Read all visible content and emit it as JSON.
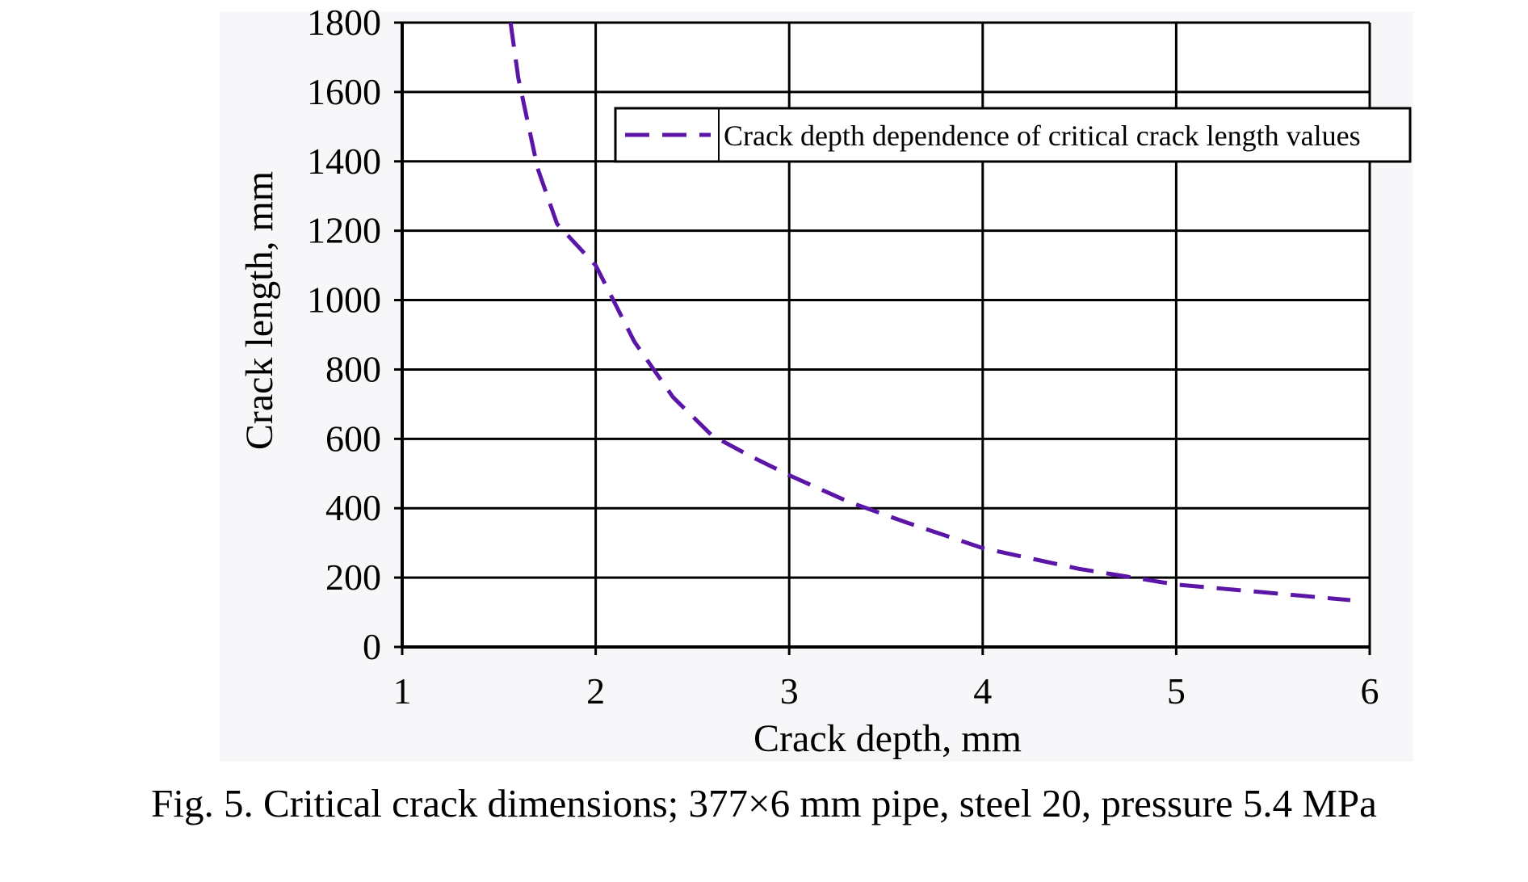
{
  "caption": "Fig. 5. Critical crack dimensions; 377×6 mm pipe, steel 20, pressure 5.4 MPa",
  "chart_data": {
    "type": "line",
    "title": "",
    "xlabel": "Crack depth, mm",
    "ylabel": "Crack length, mm",
    "xlim": [
      1,
      6
    ],
    "ylim": [
      0,
      1800
    ],
    "xticks": [
      "1",
      "2",
      "3",
      "4",
      "5",
      "6"
    ],
    "yticks": [
      "0",
      "200",
      "400",
      "600",
      "800",
      "1000",
      "1200",
      "1400",
      "1600",
      "1800"
    ],
    "grid": true,
    "legend_position": "top-right",
    "series": [
      {
        "name": "Crack depth dependence of critical crack length values",
        "color": "#5b16a8",
        "line_style": "dashed",
        "x": [
          1.56,
          1.6,
          1.7,
          1.8,
          2.0,
          2.2,
          2.4,
          2.6,
          2.8,
          3.0,
          3.3,
          3.6,
          4.0,
          4.5,
          5.0,
          5.5,
          5.9
        ],
        "y": [
          1800,
          1640,
          1380,
          1220,
          1100,
          880,
          720,
          610,
          550,
          495,
          420,
          360,
          285,
          225,
          180,
          155,
          135
        ]
      }
    ]
  }
}
